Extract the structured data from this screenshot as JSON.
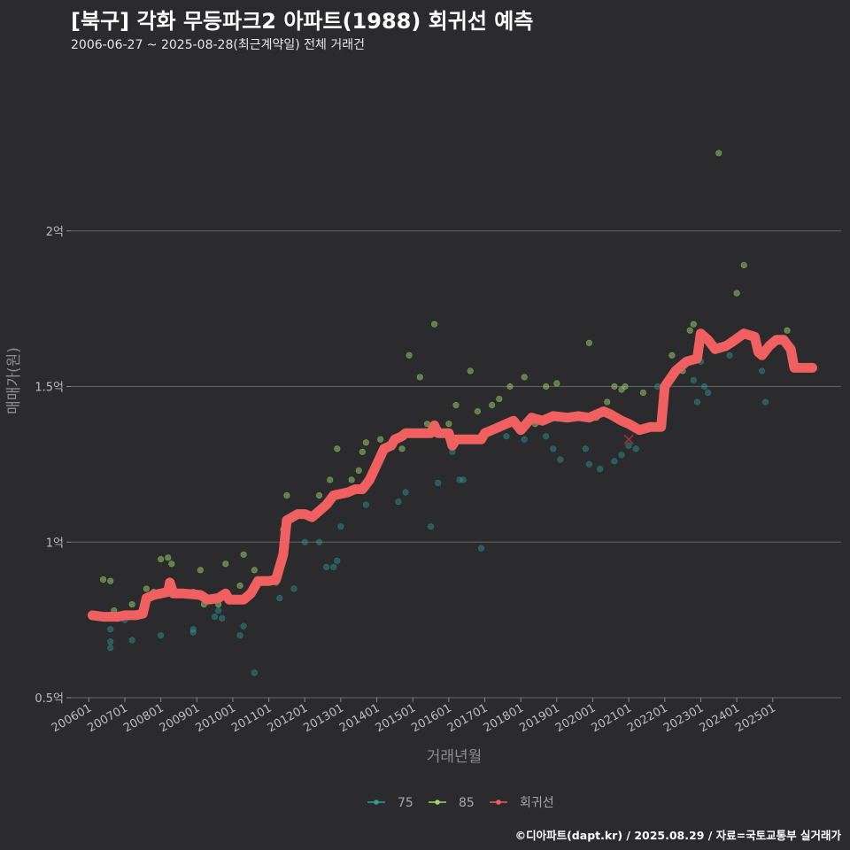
{
  "title": "[북구] 각화 무등파크2 아파트(1988) 회귀선 예측",
  "subtitle": "2006-06-27 ~ 2025-08-28(최근계약일) 전체 거래건",
  "footer": "©디아파트(dapt.kr) / 2025.08.29 / 자료=국토교통부 실거래가",
  "colors": {
    "background": "#2b2a2c",
    "grid": "#5a5a5a",
    "s75": "#2aa198",
    "s85": "#9bd66c",
    "regression": "#f06060"
  },
  "chart_data": {
    "type": "scatter",
    "title": "[북구] 각화 무등파크2 아파트(1988) 회귀선 예측",
    "xlabel": "거래년월",
    "ylabel": "매매가(원)",
    "xlim": [
      2005.5,
      2026.9
    ],
    "ylim": [
      0.5,
      2.5
    ],
    "yticks": [
      {
        "value": 0.5,
        "label": "0.5억"
      },
      {
        "value": 1.0,
        "label": "1억"
      },
      {
        "value": 1.5,
        "label": "1.5억"
      },
      {
        "value": 2.0,
        "label": "2억"
      }
    ],
    "xticks": [
      {
        "value": 2006,
        "label": "200601"
      },
      {
        "value": 2007,
        "label": "200701"
      },
      {
        "value": 2008,
        "label": "200801"
      },
      {
        "value": 2009,
        "label": "200901"
      },
      {
        "value": 2010,
        "label": "201001"
      },
      {
        "value": 2011,
        "label": "201101"
      },
      {
        "value": 2012,
        "label": "201201"
      },
      {
        "value": 2013,
        "label": "201301"
      },
      {
        "value": 2014,
        "label": "201401"
      },
      {
        "value": 2015,
        "label": "201501"
      },
      {
        "value": 2016,
        "label": "201601"
      },
      {
        "value": 2017,
        "label": "201701"
      },
      {
        "value": 2018,
        "label": "201801"
      },
      {
        "value": 2019,
        "label": "201901"
      },
      {
        "value": 2020,
        "label": "202001"
      },
      {
        "value": 2021,
        "label": "202101"
      },
      {
        "value": 2022,
        "label": "202201"
      },
      {
        "value": 2023,
        "label": "202301"
      },
      {
        "value": 2024,
        "label": "202401"
      },
      {
        "value": 2025,
        "label": "202501"
      }
    ],
    "legend": [
      "75",
      "85",
      "회귀선"
    ],
    "series": [
      {
        "name": "75",
        "points": [
          [
            2006.6,
            0.66
          ],
          [
            2006.6,
            0.68
          ],
          [
            2006.6,
            0.72
          ],
          [
            2007.0,
            0.75
          ],
          [
            2007.2,
            0.685
          ],
          [
            2008.0,
            0.7
          ],
          [
            2008.9,
            0.71
          ],
          [
            2008.9,
            0.72
          ],
          [
            2009.5,
            0.76
          ],
          [
            2009.6,
            0.78
          ],
          [
            2009.7,
            0.755
          ],
          [
            2010.2,
            0.7
          ],
          [
            2010.3,
            0.73
          ],
          [
            2010.6,
            0.58
          ],
          [
            2011.3,
            0.82
          ],
          [
            2011.7,
            0.85
          ],
          [
            2012.0,
            1.0
          ],
          [
            2012.4,
            1.0
          ],
          [
            2012.6,
            0.92
          ],
          [
            2012.8,
            0.92
          ],
          [
            2012.9,
            0.94
          ],
          [
            2013.0,
            1.05
          ],
          [
            2013.7,
            1.12
          ],
          [
            2014.6,
            1.13
          ],
          [
            2014.8,
            1.16
          ],
          [
            2015.5,
            1.05
          ],
          [
            2015.7,
            1.19
          ],
          [
            2016.1,
            1.29
          ],
          [
            2016.3,
            1.2
          ],
          [
            2016.4,
            1.2
          ],
          [
            2016.9,
            0.98
          ],
          [
            2017.6,
            1.34
          ],
          [
            2018.1,
            1.33
          ],
          [
            2018.7,
            1.34
          ],
          [
            2018.9,
            1.3
          ],
          [
            2019.1,
            1.265
          ],
          [
            2019.8,
            1.3
          ],
          [
            2019.9,
            1.25
          ],
          [
            2020.2,
            1.235
          ],
          [
            2020.6,
            1.26
          ],
          [
            2020.8,
            1.28
          ],
          [
            2021.0,
            1.31
          ],
          [
            2021.2,
            1.3
          ],
          [
            2021.8,
            1.5
          ],
          [
            2022.3,
            1.55
          ],
          [
            2022.8,
            1.52
          ],
          [
            2022.9,
            1.45
          ],
          [
            2023.0,
            1.58
          ],
          [
            2023.1,
            1.5
          ],
          [
            2023.2,
            1.48
          ],
          [
            2023.8,
            1.6
          ],
          [
            2024.7,
            1.55
          ],
          [
            2024.8,
            1.45
          ]
        ]
      },
      {
        "name": "85",
        "points": [
          [
            2006.4,
            0.88
          ],
          [
            2006.6,
            0.875
          ],
          [
            2006.7,
            0.78
          ],
          [
            2007.0,
            0.77
          ],
          [
            2007.2,
            0.8
          ],
          [
            2007.6,
            0.85
          ],
          [
            2007.8,
            0.84
          ],
          [
            2008.0,
            0.945
          ],
          [
            2008.2,
            0.95
          ],
          [
            2008.3,
            0.93
          ],
          [
            2008.9,
            0.84
          ],
          [
            2009.1,
            0.91
          ],
          [
            2009.2,
            0.8
          ],
          [
            2009.6,
            0.8
          ],
          [
            2009.8,
            0.93
          ],
          [
            2010.2,
            0.86
          ],
          [
            2010.3,
            0.96
          ],
          [
            2010.6,
            0.91
          ],
          [
            2011.2,
            0.87
          ],
          [
            2011.4,
            1.04
          ],
          [
            2011.5,
            1.15
          ],
          [
            2012.4,
            1.15
          ],
          [
            2012.9,
            1.3
          ],
          [
            2012.7,
            1.2
          ],
          [
            2013.3,
            1.2
          ],
          [
            2013.5,
            1.23
          ],
          [
            2013.6,
            1.29
          ],
          [
            2013.7,
            1.32
          ],
          [
            2014.1,
            1.33
          ],
          [
            2014.7,
            1.3
          ],
          [
            2014.9,
            1.35
          ],
          [
            2014.9,
            1.6
          ],
          [
            2015.2,
            1.53
          ],
          [
            2015.4,
            1.38
          ],
          [
            2015.6,
            1.7
          ],
          [
            2016.0,
            1.38
          ],
          [
            2016.2,
            1.44
          ],
          [
            2016.6,
            1.55
          ],
          [
            2016.8,
            1.42
          ],
          [
            2017.2,
            1.44
          ],
          [
            2017.4,
            1.46
          ],
          [
            2017.7,
            1.5
          ],
          [
            2018.1,
            1.53
          ],
          [
            2018.4,
            1.38
          ],
          [
            2018.7,
            1.5
          ],
          [
            2019.0,
            1.51
          ],
          [
            2019.5,
            1.4
          ],
          [
            2019.9,
            1.64
          ],
          [
            2020.1,
            1.4
          ],
          [
            2020.4,
            1.45
          ],
          [
            2020.6,
            1.5
          ],
          [
            2020.8,
            1.49
          ],
          [
            2020.9,
            1.5
          ],
          [
            2021.4,
            1.48
          ],
          [
            2022.2,
            1.6
          ],
          [
            2022.5,
            1.55
          ],
          [
            2022.7,
            1.68
          ],
          [
            2022.8,
            1.7
          ],
          [
            2022.9,
            1.6
          ],
          [
            2023.5,
            2.25
          ],
          [
            2024.0,
            1.8
          ],
          [
            2024.2,
            1.89
          ],
          [
            2025.4,
            1.68
          ]
        ]
      }
    ],
    "regression": [
      [
        2006.1,
        0.765
      ],
      [
        2006.4,
        0.76
      ],
      [
        2006.8,
        0.76
      ],
      [
        2007.0,
        0.765
      ],
      [
        2007.3,
        0.765
      ],
      [
        2007.5,
        0.77
      ],
      [
        2007.6,
        0.82
      ],
      [
        2007.8,
        0.83
      ],
      [
        2008.2,
        0.84
      ],
      [
        2008.25,
        0.87
      ],
      [
        2008.35,
        0.835
      ],
      [
        2008.6,
        0.835
      ],
      [
        2009.1,
        0.83
      ],
      [
        2009.3,
        0.815
      ],
      [
        2009.6,
        0.82
      ],
      [
        2009.8,
        0.835
      ],
      [
        2009.9,
        0.815
      ],
      [
        2010.3,
        0.815
      ],
      [
        2010.5,
        0.835
      ],
      [
        2010.7,
        0.875
      ],
      [
        2011.0,
        0.875
      ],
      [
        2011.2,
        0.88
      ],
      [
        2011.4,
        0.96
      ],
      [
        2011.5,
        1.07
      ],
      [
        2011.8,
        1.09
      ],
      [
        2012.0,
        1.09
      ],
      [
        2012.2,
        1.08
      ],
      [
        2012.4,
        1.1
      ],
      [
        2012.6,
        1.12
      ],
      [
        2012.8,
        1.15
      ],
      [
        2013.2,
        1.16
      ],
      [
        2013.4,
        1.17
      ],
      [
        2013.6,
        1.17
      ],
      [
        2013.8,
        1.2
      ],
      [
        2014.0,
        1.25
      ],
      [
        2014.2,
        1.3
      ],
      [
        2014.4,
        1.31
      ],
      [
        2014.5,
        1.33
      ],
      [
        2014.7,
        1.34
      ],
      [
        2014.8,
        1.35
      ],
      [
        2015.0,
        1.35
      ],
      [
        2015.5,
        1.35
      ],
      [
        2015.6,
        1.375
      ],
      [
        2015.7,
        1.35
      ],
      [
        2016.0,
        1.35
      ],
      [
        2016.1,
        1.31
      ],
      [
        2016.2,
        1.33
      ],
      [
        2016.5,
        1.33
      ],
      [
        2016.9,
        1.33
      ],
      [
        2017.0,
        1.35
      ],
      [
        2017.3,
        1.365
      ],
      [
        2017.6,
        1.38
      ],
      [
        2017.8,
        1.39
      ],
      [
        2018.0,
        1.36
      ],
      [
        2018.3,
        1.4
      ],
      [
        2018.6,
        1.39
      ],
      [
        2018.9,
        1.405
      ],
      [
        2019.3,
        1.4
      ],
      [
        2019.6,
        1.405
      ],
      [
        2019.9,
        1.4
      ],
      [
        2020.3,
        1.42
      ],
      [
        2020.5,
        1.41
      ],
      [
        2020.8,
        1.39
      ],
      [
        2021.0,
        1.38
      ],
      [
        2021.3,
        1.36
      ],
      [
        2021.6,
        1.37
      ],
      [
        2021.9,
        1.37
      ],
      [
        2022.0,
        1.5
      ],
      [
        2022.3,
        1.55
      ],
      [
        2022.6,
        1.58
      ],
      [
        2022.9,
        1.59
      ],
      [
        2023.0,
        1.67
      ],
      [
        2023.2,
        1.65
      ],
      [
        2023.4,
        1.62
      ],
      [
        2023.7,
        1.63
      ],
      [
        2023.9,
        1.645
      ],
      [
        2024.2,
        1.67
      ],
      [
        2024.5,
        1.66
      ],
      [
        2024.6,
        1.61
      ],
      [
        2024.7,
        1.6
      ],
      [
        2024.9,
        1.63
      ],
      [
        2025.1,
        1.65
      ],
      [
        2025.3,
        1.65
      ],
      [
        2025.5,
        1.62
      ],
      [
        2025.6,
        1.56
      ],
      [
        2025.8,
        1.56
      ],
      [
        2026.1,
        1.56
      ]
    ],
    "marker": {
      "x": 2021.0,
      "y": 1.33,
      "shape": "x"
    }
  }
}
